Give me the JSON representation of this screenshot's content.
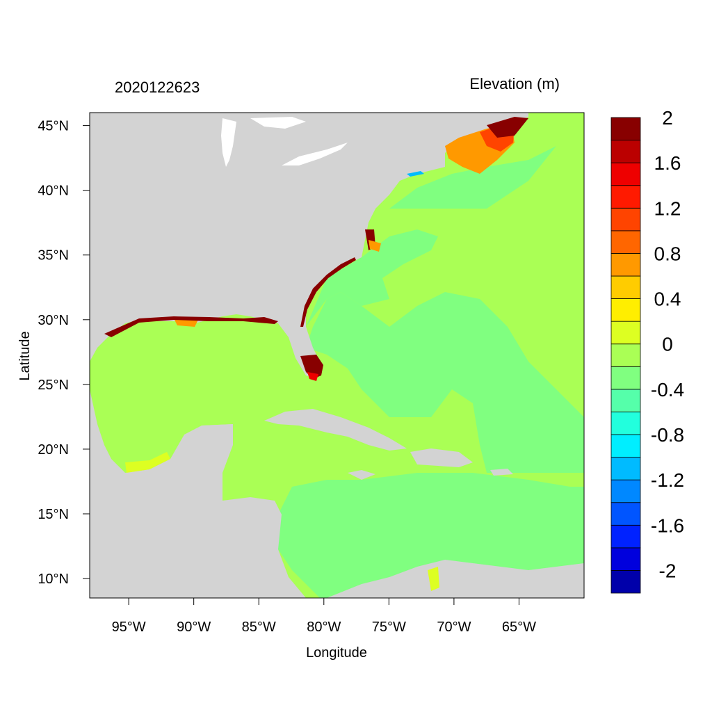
{
  "figure": {
    "timestamp": "2020122623",
    "title": "Elevation (m)",
    "xlabel": "Longitude",
    "ylabel": "Latitude"
  },
  "map": {
    "lon_range": [
      -98,
      -60
    ],
    "lat_range": [
      8.5,
      46
    ],
    "x_ticks": [
      {
        "lon": -95,
        "label": "95°W"
      },
      {
        "lon": -90,
        "label": "90°W"
      },
      {
        "lon": -85,
        "label": "85°W"
      },
      {
        "lon": -80,
        "label": "80°W"
      },
      {
        "lon": -75,
        "label": "75°W"
      },
      {
        "lon": -70,
        "label": "70°W"
      },
      {
        "lon": -65,
        "label": "65°W"
      }
    ],
    "y_ticks": [
      {
        "lat": 45,
        "label": "45°N"
      },
      {
        "lat": 40,
        "label": "40°N"
      },
      {
        "lat": 35,
        "label": "35°N"
      },
      {
        "lat": 30,
        "label": "30°N"
      },
      {
        "lat": 25,
        "label": "25°N"
      },
      {
        "lat": 20,
        "label": "20°N"
      },
      {
        "lat": 15,
        "label": "15°N"
      },
      {
        "lat": 10,
        "label": "10°N"
      }
    ]
  },
  "colorbar": {
    "colors": [
      "#0000aa",
      "#0000dd",
      "#0022ff",
      "#0055ff",
      "#0088ff",
      "#00bbff",
      "#00eeff",
      "#22ffdd",
      "#55ffaa",
      "#80ff80",
      "#aaff55",
      "#ddff22",
      "#ffee00",
      "#ffcc00",
      "#ff9900",
      "#ff6600",
      "#ff4400",
      "#ff1a00",
      "#ee0000",
      "#bb0000",
      "#880000"
    ],
    "labels": [
      "-2",
      "-1.6",
      "-1.2",
      "-0.8",
      "-0.4",
      "0",
      "0.4",
      "0.8",
      "1.2",
      "1.6",
      "2"
    ]
  },
  "colors": {
    "land": "#d3d3d3",
    "ocean_near_zero": "#aaff55",
    "ocean_slightly_negative": "#80ff80",
    "surge_high": "#880000"
  }
}
